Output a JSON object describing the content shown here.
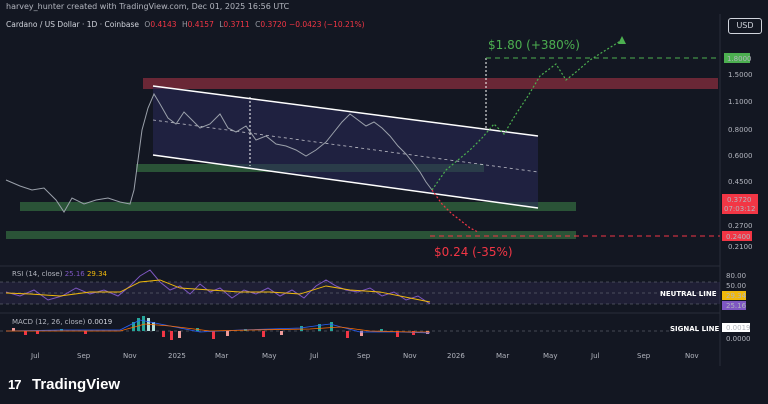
{
  "header": {
    "credit": "harvey_hunter created with TradingView.com, Dec 01, 2025 16:56 UTC",
    "currency_button": "USD"
  },
  "legend": {
    "symbol": "Cardano / US Dollar · 1D · Coinbase",
    "open_label": "O",
    "open": "0.4143",
    "high_label": "H",
    "high": "0.4157",
    "low_label": "L",
    "low": "0.3711",
    "close_label": "C",
    "close": "0.3720",
    "change": "−0.0423 (−10.21%)"
  },
  "annotations": {
    "target_up": "$1.80 (+380%)",
    "target_down": "$0.24 (-35%)"
  },
  "price_axis": {
    "ticks": [
      "1.8000",
      "1.5000",
      "1.1000",
      "0.8000",
      "0.6000",
      "0.4500",
      "0.2700",
      "0.2100"
    ],
    "current_price": "0.3720",
    "countdown": "07:03:12",
    "target_high_label": "1.8000",
    "target_low_label": "0.2400"
  },
  "time_axis": {
    "ticks": [
      "Jul",
      "Sep",
      "Nov",
      "2025",
      "Mar",
      "May",
      "Jul",
      "Sep",
      "Nov",
      "2026",
      "Mar",
      "May",
      "Jul",
      "Sep",
      "Nov"
    ]
  },
  "rsi": {
    "label": "RSI (14, close)",
    "value_1": "25.16",
    "value_2": "29.34",
    "ticks": [
      "80.00",
      "50.00"
    ],
    "badge_1": "29.34",
    "badge_2": "25.16",
    "annotation": "NEUTRAL LINE"
  },
  "macd": {
    "label": "MACD (12, 26, close)",
    "value": "0.0019",
    "badge": "0.0019",
    "zero": "0.0000",
    "annotation": "SIGNAL LINE"
  },
  "footer": {
    "brand": "TradingView"
  },
  "colors": {
    "background": "#131722",
    "bullish": "#4caf50",
    "bearish": "#f23645",
    "resistance_zone": "#7a2a3a",
    "support_zone": "#2e5a3a",
    "channel_fill": "#2a2a5a",
    "rsi_line": "#7e57c2"
  }
}
